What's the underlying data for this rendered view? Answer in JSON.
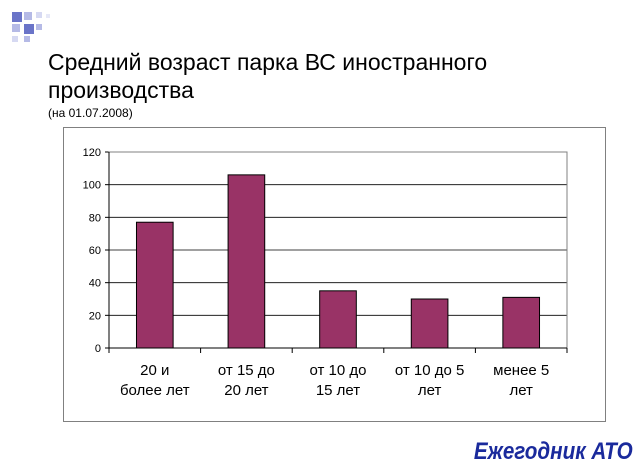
{
  "slide": {
    "title": "Средний возраст парка ВС иностранного производства",
    "subtitle": "(на 01.07.2008)",
    "logo_text": "Ежегодник АТО"
  },
  "colors": {
    "bar": "#993366",
    "logo": "#1a2a9c",
    "deco": "#6a74c8"
  },
  "chart_data": {
    "type": "bar",
    "categories": [
      [
        "20 и",
        "более лет"
      ],
      [
        "от 15 до",
        "20 лет"
      ],
      [
        "от 10 до",
        "15 лет"
      ],
      [
        "от 10 до 5",
        "лет"
      ],
      [
        "менее 5",
        "лет"
      ]
    ],
    "values": [
      77,
      106,
      35,
      30,
      31
    ],
    "yticks": [
      0,
      20,
      40,
      60,
      80,
      100,
      120
    ],
    "ylim": [
      0,
      120
    ],
    "grid": true,
    "legend": "none"
  }
}
